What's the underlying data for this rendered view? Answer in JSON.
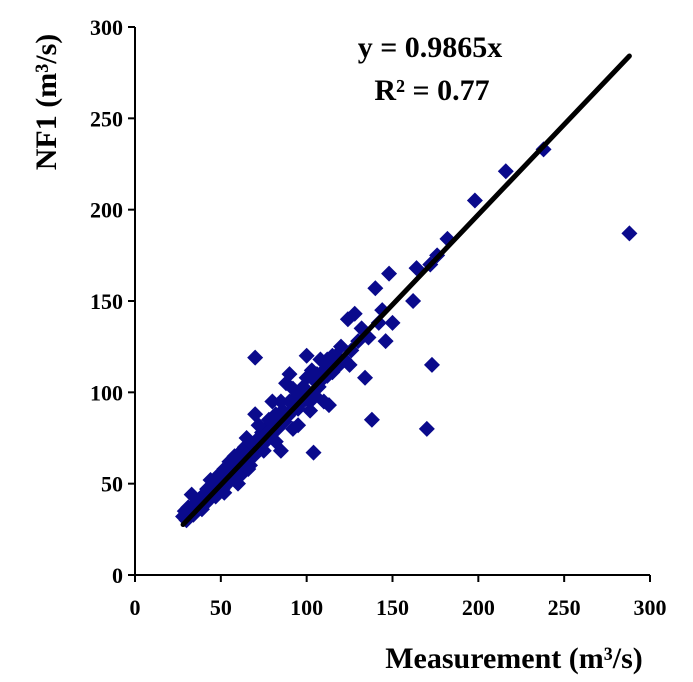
{
  "chart_data": {
    "type": "scatter",
    "title": "",
    "xlabel": "Measurement (m³/s)",
    "ylabel": "NF1 (m³/s)",
    "xlim": [
      0,
      300
    ],
    "ylim": [
      0,
      300
    ],
    "xticks": [
      "0",
      "50",
      "100",
      "150",
      "200",
      "250",
      "300"
    ],
    "yticks": [
      "0",
      "50",
      "100",
      "150",
      "200",
      "250",
      "300"
    ],
    "grid": false,
    "legend": "none",
    "marker_color": "#0a0a8c",
    "trendline_color": "#000000",
    "trendline": {
      "slope": 0.9865,
      "intercept": 0,
      "x_range": [
        28,
        288
      ]
    },
    "annotations": [
      "y = 0.9865x",
      "R² = 0.77"
    ],
    "points": [
      [
        28,
        32
      ],
      [
        29,
        35
      ],
      [
        30,
        30
      ],
      [
        31,
        37
      ],
      [
        32,
        34
      ],
      [
        33,
        44
      ],
      [
        34,
        33
      ],
      [
        35,
        36
      ],
      [
        36,
        40
      ],
      [
        37,
        38
      ],
      [
        38,
        42
      ],
      [
        39,
        36
      ],
      [
        40,
        44
      ],
      [
        41,
        39
      ],
      [
        42,
        47
      ],
      [
        43,
        41
      ],
      [
        44,
        52
      ],
      [
        45,
        45
      ],
      [
        46,
        49
      ],
      [
        47,
        43
      ],
      [
        48,
        46
      ],
      [
        49,
        55
      ],
      [
        50,
        51
      ],
      [
        51,
        47
      ],
      [
        52,
        58
      ],
      [
        53,
        52
      ],
      [
        54,
        50
      ],
      [
        55,
        62
      ],
      [
        56,
        55
      ],
      [
        57,
        60
      ],
      [
        58,
        54
      ],
      [
        59,
        57
      ],
      [
        60,
        66
      ],
      [
        61,
        59
      ],
      [
        62,
        63
      ],
      [
        63,
        58
      ],
      [
        64,
        70
      ],
      [
        65,
        62
      ],
      [
        66,
        67
      ],
      [
        67,
        60
      ],
      [
        68,
        72
      ],
      [
        69,
        65
      ],
      [
        70,
        88
      ],
      [
        71,
        68
      ],
      [
        72,
        75
      ],
      [
        73,
        70
      ],
      [
        74,
        78
      ],
      [
        75,
        72
      ],
      [
        76,
        80
      ],
      [
        77,
        74
      ],
      [
        78,
        85
      ],
      [
        79,
        77
      ],
      [
        80,
        83
      ],
      [
        81,
        79
      ],
      [
        82,
        88
      ],
      [
        83,
        80
      ],
      [
        84,
        86
      ],
      [
        85,
        68
      ],
      [
        86,
        90
      ],
      [
        87,
        84
      ],
      [
        88,
        105
      ],
      [
        89,
        87
      ],
      [
        90,
        95
      ],
      [
        91,
        89
      ],
      [
        92,
        80
      ],
      [
        93,
        92
      ],
      [
        94,
        98
      ],
      [
        95,
        91
      ],
      [
        96,
        100
      ],
      [
        97,
        95
      ],
      [
        98,
        103
      ],
      [
        99,
        96
      ],
      [
        100,
        108
      ],
      [
        101,
        99
      ],
      [
        102,
        95
      ],
      [
        103,
        112
      ],
      [
        104,
        67
      ],
      [
        105,
        106
      ],
      [
        106,
        110
      ],
      [
        107,
        103
      ],
      [
        108,
        118
      ],
      [
        109,
        107
      ],
      [
        110,
        95
      ],
      [
        111,
        113
      ],
      [
        112,
        109
      ],
      [
        113,
        93
      ],
      [
        114,
        116
      ],
      [
        115,
        111
      ],
      [
        117,
        120
      ],
      [
        119,
        115
      ],
      [
        120,
        125
      ],
      [
        122,
        118
      ],
      [
        124,
        140
      ],
      [
        126,
        123
      ],
      [
        128,
        143
      ],
      [
        130,
        128
      ],
      [
        132,
        135
      ],
      [
        134,
        108
      ],
      [
        136,
        130
      ],
      [
        138,
        85
      ],
      [
        140,
        157
      ],
      [
        142,
        138
      ],
      [
        144,
        145
      ],
      [
        146,
        128
      ],
      [
        148,
        165
      ],
      [
        150,
        138
      ],
      [
        162,
        150
      ],
      [
        164,
        168
      ],
      [
        170,
        80
      ],
      [
        172,
        170
      ],
      [
        173,
        115
      ],
      [
        176,
        175
      ],
      [
        182,
        184
      ],
      [
        198,
        205
      ],
      [
        216,
        221
      ],
      [
        238,
        233
      ],
      [
        288,
        187
      ],
      [
        70,
        119
      ],
      [
        60,
        50
      ],
      [
        80,
        95
      ],
      [
        90,
        110
      ],
      [
        100,
        120
      ],
      [
        58,
        65
      ],
      [
        65,
        75
      ],
      [
        75,
        68
      ],
      [
        85,
        95
      ],
      [
        95,
        82
      ],
      [
        105,
        98
      ],
      [
        115,
        120
      ],
      [
        125,
        115
      ],
      [
        52,
        45
      ],
      [
        62,
        55
      ],
      [
        72,
        82
      ],
      [
        82,
        73
      ],
      [
        92,
        102
      ],
      [
        102,
        90
      ],
      [
        112,
        118
      ],
      [
        48,
        52
      ],
      [
        56,
        62
      ],
      [
        66,
        58
      ]
    ]
  }
}
